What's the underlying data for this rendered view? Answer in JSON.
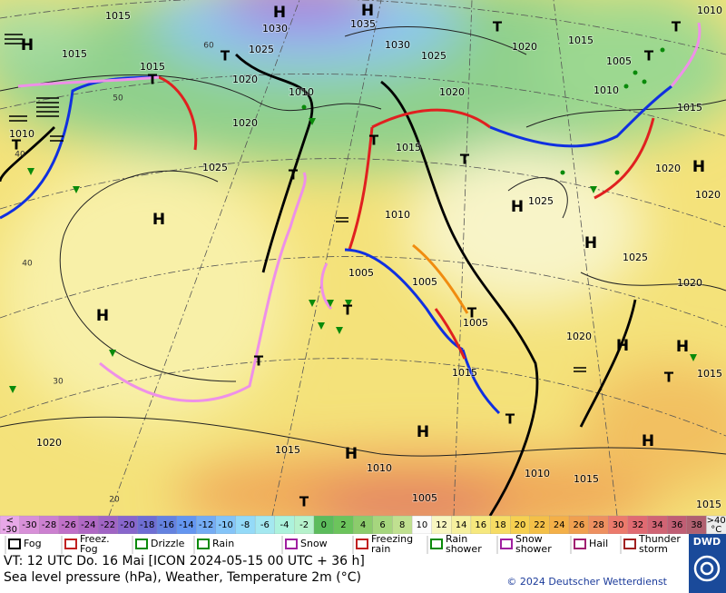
{
  "map": {
    "pressure_labels": [
      "1015",
      "1030",
      "1035",
      "1025",
      "1030",
      "1025",
      "1020",
      "1015",
      "1005",
      "1010",
      "1015",
      "1015",
      "1020",
      "1010",
      "1020",
      "1010",
      "1015",
      "1010",
      "1020",
      "1015",
      "1025",
      "1020",
      "1020",
      "1025",
      "1010",
      "1025",
      "1005",
      "1005",
      "1005",
      "1020",
      "1020",
      "1015",
      "1015",
      "1020",
      "1015",
      "1010",
      "1010",
      "1015",
      "1005",
      "1015"
    ],
    "high_centers": [
      "H",
      "H",
      "H",
      "H",
      "H",
      "H",
      "H",
      "H",
      "H",
      "H",
      "H",
      "H",
      "H"
    ],
    "thunderstorm_letters": [
      "T",
      "T",
      "T",
      "T",
      "T",
      "T",
      "T",
      "T",
      "T",
      "T",
      "T",
      "T",
      "T",
      "T",
      "T"
    ],
    "latitudes": [
      "60",
      "50",
      "40",
      "40",
      "30",
      "20"
    ]
  },
  "color_scale": {
    "labels": [
      [
        "<",
        "-30"
      ],
      "-30",
      "-28",
      "-26",
      "-24",
      "-22",
      "-20",
      "-18",
      "-16",
      "-14",
      "-12",
      "-10",
      "-8",
      "-6",
      "-4",
      "-2",
      "0",
      "2",
      "4",
      "6",
      "8",
      "10",
      "12",
      "14",
      "16",
      "18",
      "20",
      "22",
      "24",
      "26",
      "28",
      "30",
      "32",
      "34",
      "36",
      "38",
      [
        ">40",
        "°C"
      ]
    ],
    "colors": [
      "#e8a8e8",
      "#d890d8",
      "#cc80d0",
      "#c070c8",
      "#b068c4",
      "#a064c4",
      "#8866cc",
      "#6e6ed4",
      "#6482e0",
      "#6496f0",
      "#74acf4",
      "#84c4f8",
      "#94daf8",
      "#a4e8f0",
      "#acf2dc",
      "#b6f2cc",
      "#5cbc5c",
      "#6cc45c",
      "#8ccc6c",
      "#a6d67e",
      "#c0e090",
      "#fcfcfc",
      "#f8f6c0",
      "#f6f09e",
      "#f6e87e",
      "#f6dc64",
      "#f6d050",
      "#f4c048",
      "#f4b048",
      "#f0a050",
      "#ee9060",
      "#ec7a6c",
      "#e06a72",
      "#d06474",
      "#c05e74",
      "#b06070",
      "#ececec"
    ]
  },
  "legend": [
    [
      "Fog"
    ],
    [
      "Freez.",
      "Fog"
    ],
    [
      "Drizzle"
    ],
    [
      "Rain"
    ],
    [
      "Snow"
    ],
    [
      "Freezing",
      "rain"
    ],
    [
      "Rain",
      "shower"
    ],
    [
      "Snow",
      "shower"
    ],
    [
      "Hail"
    ],
    [
      "Thunder",
      "storm"
    ]
  ],
  "footer": {
    "valid_time": "VT: 12 UTC Do.  16 Mai [ICON 2024-05-15  00 UTC + 36 h]",
    "description": "Sea level pressure (hPa), Weather, Temperature 2m (°C)",
    "copyright": "© 2024 Deutscher Wetterdienst",
    "logo": "DWD"
  }
}
